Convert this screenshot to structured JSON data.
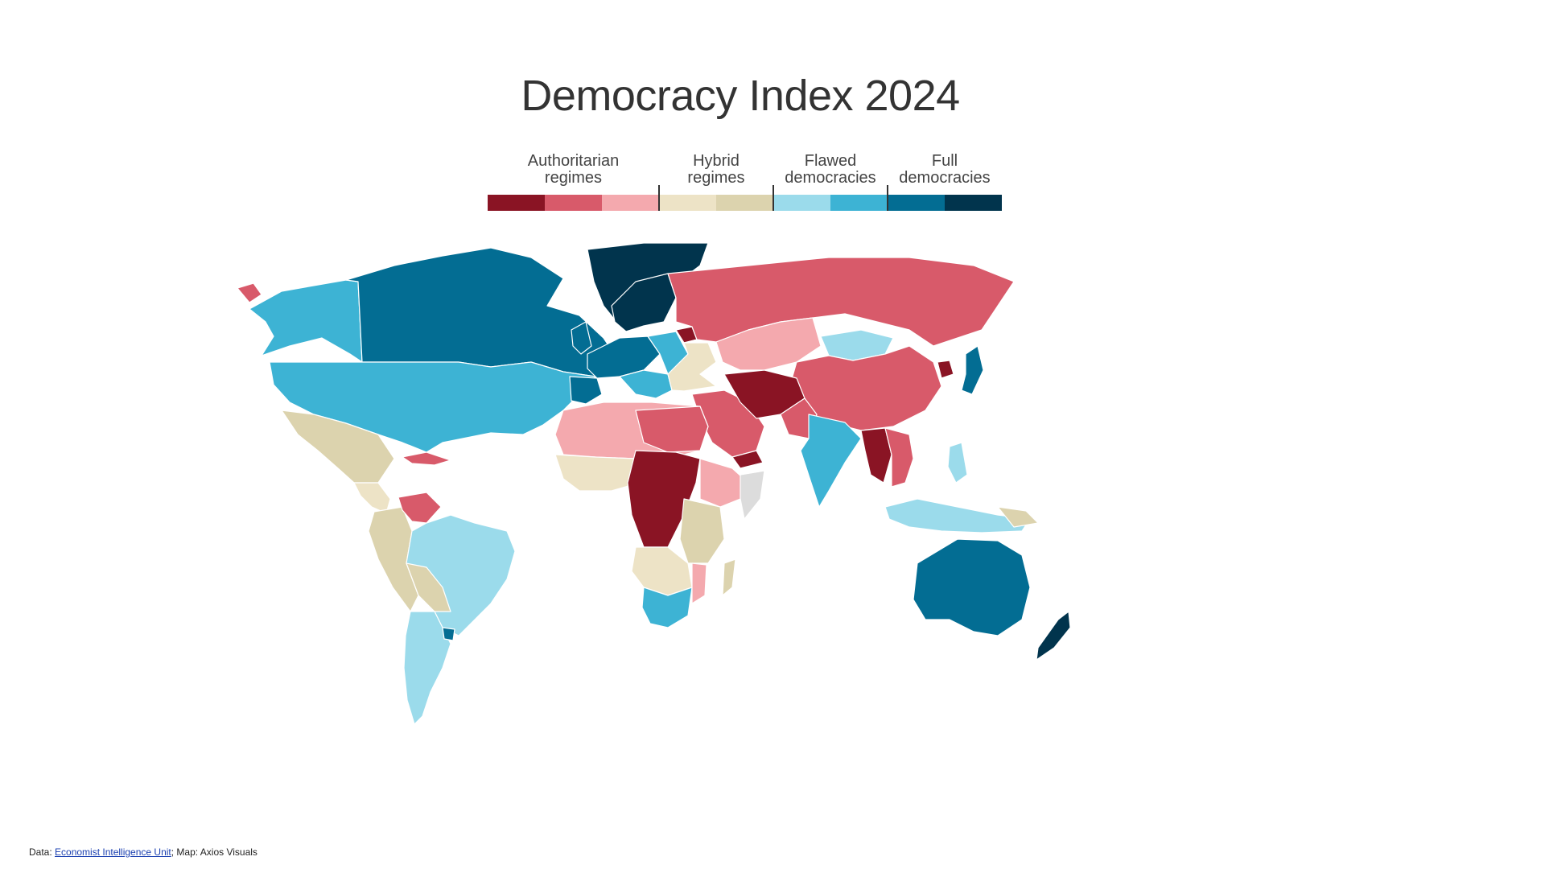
{
  "title": "Democracy Index 2024",
  "legend": {
    "groups": [
      {
        "label": "Authoritarian\nregimes",
        "colors": [
          "#8a1424",
          "#d85a6a",
          "#f4a9ae"
        ]
      },
      {
        "label": "Hybrid\nregimes",
        "colors": [
          "#ede3c6",
          "#dcd3ae"
        ]
      },
      {
        "label": "Flawed\ndemocracies",
        "colors": [
          "#9bdbeb",
          "#3db3d4"
        ]
      },
      {
        "label": "Full\ndemocracies",
        "colors": [
          "#036d93",
          "#01344d"
        ]
      }
    ]
  },
  "no_data_color": "#dcdcdc",
  "footer": {
    "prefix": "Data: ",
    "link_text": "Economist Intelligence Unit",
    "suffix": "; Map: Axios Visuals"
  }
}
